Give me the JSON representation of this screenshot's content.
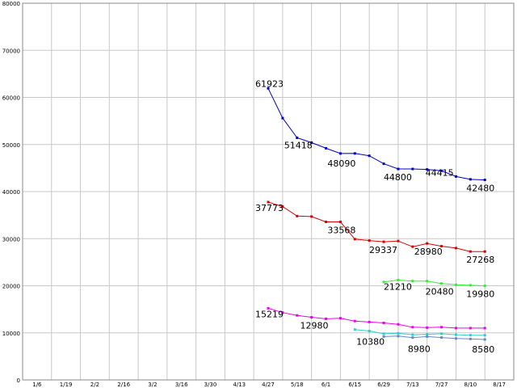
{
  "chart_data": {
    "type": "line",
    "grid": true,
    "ylim": [
      0,
      80000
    ],
    "y_ticks": [
      "0",
      "10000",
      "20000",
      "30000",
      "40000",
      "50000",
      "60000",
      "70000",
      "80000"
    ],
    "x_ticks": [
      "1/6",
      "1/19",
      "2/2",
      "2/16",
      "3/2",
      "3/16",
      "3/30",
      "4/13",
      "4/27",
      "5/18",
      "6/1",
      "6/15",
      "6/29",
      "7/13",
      "7/27",
      "8/10",
      "8/17"
    ],
    "series": [
      {
        "color": "#0000cc",
        "x": [
          8.0,
          8.5,
          9.0,
          9.5,
          10.0,
          10.5,
          11.0,
          11.5,
          12.0,
          12.5,
          13.0,
          13.5,
          14.0,
          14.5,
          15.0,
          15.5
        ],
        "values": [
          61923,
          55600,
          51418,
          50400,
          49200,
          48090,
          48100,
          47600,
          45900,
          44800,
          44800,
          44700,
          44415,
          43200,
          42600,
          42480
        ]
      },
      {
        "color": "#dd0000",
        "x": [
          8.0,
          8.5,
          9.0,
          9.5,
          10.0,
          10.5,
          11.0,
          11.5,
          12.0,
          12.5,
          13.0,
          13.5,
          14.0,
          14.5,
          15.0,
          15.5
        ],
        "values": [
          37773,
          36800,
          34800,
          34700,
          33568,
          33568,
          29900,
          29600,
          29337,
          29500,
          28300,
          28980,
          28400,
          28000,
          27268,
          27268
        ]
      },
      {
        "color": "#33ee33",
        "x": [
          12.0,
          12.5,
          13.0,
          13.5,
          14.0,
          14.5,
          15.0,
          15.5
        ],
        "values": [
          20800,
          21210,
          21000,
          21000,
          20480,
          20200,
          20100,
          19980
        ]
      },
      {
        "color": "#ee00ee",
        "x": [
          8.0,
          8.5,
          9.0,
          9.5,
          10.0,
          10.5,
          11.0,
          11.5,
          12.0,
          12.5,
          13.0,
          13.5,
          14.0,
          14.5,
          15.0,
          15.5
        ],
        "values": [
          15219,
          14300,
          13700,
          13300,
          12980,
          13100,
          12500,
          12300,
          12100,
          11800,
          11200,
          11100,
          11200,
          11000,
          11000,
          11000
        ]
      },
      {
        "color": "#33cccc",
        "x": [
          11.0,
          11.5,
          12.0,
          12.5,
          13.0,
          13.5,
          14.0,
          14.5,
          15.0,
          15.5
        ],
        "values": [
          10700,
          10380,
          9800,
          9900,
          9600,
          9700,
          9800,
          9600,
          9500,
          9500
        ]
      },
      {
        "color": "#6688cc",
        "x": [
          12.0,
          12.5,
          13.0,
          13.5,
          14.0,
          14.5,
          15.0,
          15.5
        ],
        "values": [
          9200,
          9300,
          8980,
          9200,
          9000,
          8800,
          8700,
          8580
        ]
      }
    ],
    "annotations": [
      {
        "text": "61923",
        "x": 8.0,
        "y": 61923,
        "dx": -16,
        "dy": -2
      },
      {
        "text": "51418",
        "x": 9.0,
        "y": 51418,
        "dx": -16,
        "dy": 13
      },
      {
        "text": "48090",
        "x": 10.5,
        "y": 48090,
        "dx": -16,
        "dy": 16
      },
      {
        "text": "44800",
        "x": 12.5,
        "y": 44800,
        "dx": -18,
        "dy": 14
      },
      {
        "text": "44415",
        "x": 14.0,
        "y": 44415,
        "dx": -20,
        "dy": 6
      },
      {
        "text": "42480",
        "x": 15.5,
        "y": 42480,
        "dx": -23,
        "dy": 14
      },
      {
        "text": "37773",
        "x": 8.0,
        "y": 37773,
        "dx": -16,
        "dy": 11
      },
      {
        "text": "33568",
        "x": 10.5,
        "y": 33568,
        "dx": -16,
        "dy": 14
      },
      {
        "text": "29337",
        "x": 12.0,
        "y": 29337,
        "dx": -18,
        "dy": 14
      },
      {
        "text": "28980",
        "x": 13.5,
        "y": 28980,
        "dx": -16,
        "dy": 14
      },
      {
        "text": "27268",
        "x": 15.5,
        "y": 27268,
        "dx": -23,
        "dy": 14
      },
      {
        "text": "21210",
        "x": 12.5,
        "y": 21210,
        "dx": -18,
        "dy": 12
      },
      {
        "text": "20480",
        "x": 14.0,
        "y": 20480,
        "dx": -20,
        "dy": 14
      },
      {
        "text": "19980",
        "x": 15.5,
        "y": 19980,
        "dx": -23,
        "dy": 14
      },
      {
        "text": "15219",
        "x": 8.0,
        "y": 15219,
        "dx": -16,
        "dy": 11
      },
      {
        "text": "12980",
        "x": 10.0,
        "y": 12980,
        "dx": -32,
        "dy": 12
      },
      {
        "text": "10380",
        "x": 11.5,
        "y": 10380,
        "dx": -16,
        "dy": 17
      },
      {
        "text": "8980",
        "x": 13.0,
        "y": 8980,
        "dx": -6,
        "dy": 18
      },
      {
        "text": "8580",
        "x": 15.5,
        "y": 8580,
        "dx": -16,
        "dy": 16
      }
    ]
  }
}
